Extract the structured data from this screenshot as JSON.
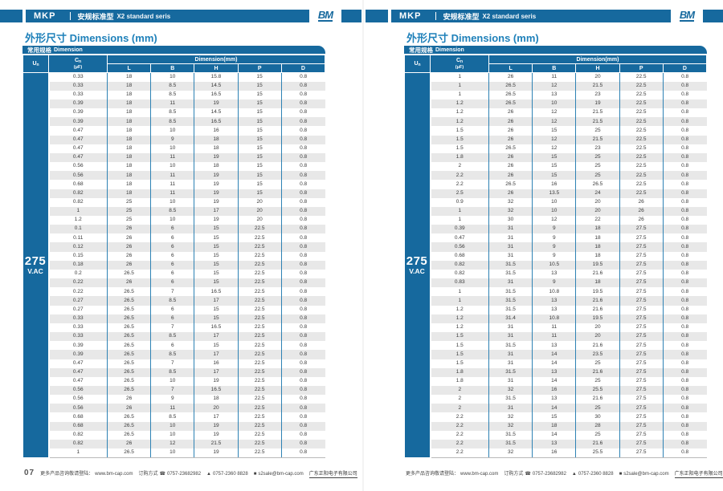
{
  "header": {
    "product": "MKP",
    "series_cn": "安规标准型",
    "series_en": "X2 standard seris",
    "logo": "BM"
  },
  "section_title": {
    "cn": "外形尺寸",
    "en": "Dimensions (mm)"
  },
  "table": {
    "banner_cn": "常用规格",
    "banner_en": "Dimension",
    "un": {
      "base": "U",
      "sub": "n"
    },
    "cn": {
      "base": "C",
      "sub": "n",
      "unit": "(μF)"
    },
    "dim_group": "Dimension(mm)",
    "dim_cols": [
      "L",
      "B",
      "H",
      "P",
      "D"
    ],
    "voltage": "275",
    "voltage_unit": "V.AC"
  },
  "footer": {
    "promo": "更多产品咨询敬请登陆：",
    "url": "www.bm-cap.com",
    "order_label": "订购方式",
    "phone_icon": "☎",
    "phone": "0757-23682982",
    "fax_icon": "▲",
    "fax": "0757-2360 8828",
    "mail_icon": "■",
    "email": "s2sale@bm-cap.com",
    "company": "广东正阳电子有限公司"
  },
  "pages": [
    {
      "page_no": "07",
      "rows": [
        [
          0.33,
          18,
          10,
          15.8,
          15,
          0.8
        ],
        [
          0.33,
          18,
          8.5,
          14.5,
          15,
          0.8
        ],
        [
          0.33,
          18,
          8.5,
          16.5,
          15,
          0.8
        ],
        [
          0.39,
          18,
          11,
          19,
          15,
          0.8
        ],
        [
          0.39,
          18,
          8.5,
          14.5,
          15,
          0.8
        ],
        [
          0.39,
          18,
          8.5,
          16.5,
          15,
          0.8
        ],
        [
          0.47,
          18,
          10,
          16,
          15,
          0.8
        ],
        [
          0.47,
          18,
          9,
          18,
          15,
          0.8
        ],
        [
          0.47,
          18,
          10,
          18,
          15,
          0.8
        ],
        [
          0.47,
          18,
          11,
          19,
          15,
          0.8
        ],
        [
          0.56,
          18,
          10,
          18,
          15,
          0.8
        ],
        [
          0.56,
          18,
          11,
          19,
          15,
          0.8
        ],
        [
          0.68,
          18,
          11,
          19,
          15,
          0.8
        ],
        [
          0.82,
          18,
          11,
          19,
          15,
          0.8
        ],
        [
          0.82,
          25,
          10,
          19,
          20,
          0.8
        ],
        [
          1,
          25,
          8.5,
          17,
          20,
          0.8
        ],
        [
          1.2,
          25,
          10,
          19,
          20,
          0.8
        ],
        [
          0.1,
          26,
          6,
          15,
          22.5,
          0.8
        ],
        [
          0.11,
          26,
          6,
          15,
          22.5,
          0.8
        ],
        [
          0.12,
          26,
          6,
          15,
          22.5,
          0.8
        ],
        [
          0.15,
          26,
          6,
          15,
          22.5,
          0.8
        ],
        [
          0.18,
          26,
          6,
          15,
          22.5,
          0.8
        ],
        [
          0.2,
          26.5,
          6,
          15,
          22.5,
          0.8
        ],
        [
          0.22,
          26,
          6,
          15,
          22.5,
          0.8
        ],
        [
          0.22,
          26.5,
          7,
          16.5,
          22.5,
          0.8
        ],
        [
          0.27,
          26.5,
          8.5,
          17,
          22.5,
          0.8
        ],
        [
          0.27,
          26.5,
          6,
          15,
          22.5,
          0.8
        ],
        [
          0.33,
          26.5,
          6,
          15,
          22.5,
          0.8
        ],
        [
          0.33,
          26.5,
          7,
          16.5,
          22.5,
          0.8
        ],
        [
          0.33,
          26.5,
          8.5,
          17,
          22.5,
          0.8
        ],
        [
          0.39,
          26.5,
          6,
          15,
          22.5,
          0.8
        ],
        [
          0.39,
          26.5,
          8.5,
          17,
          22.5,
          0.8
        ],
        [
          0.47,
          26.5,
          7,
          16,
          22.5,
          0.8
        ],
        [
          0.47,
          26.5,
          8.5,
          17,
          22.5,
          0.8
        ],
        [
          0.47,
          26.5,
          10,
          19,
          22.5,
          0.8
        ],
        [
          0.56,
          26.5,
          7,
          16.5,
          22.5,
          0.8
        ],
        [
          0.56,
          26,
          9,
          18,
          22.5,
          0.8
        ],
        [
          0.56,
          26,
          11,
          20,
          22.5,
          0.8
        ],
        [
          0.68,
          26.5,
          8.5,
          17,
          22.5,
          0.8
        ],
        [
          0.68,
          26.5,
          10,
          19,
          22.5,
          0.8
        ],
        [
          0.82,
          26.5,
          10,
          19,
          22.5,
          0.8
        ],
        [
          0.82,
          26,
          12,
          21.5,
          22.5,
          0.8
        ],
        [
          1,
          26.5,
          10,
          19,
          22.5,
          0.8
        ]
      ]
    },
    {
      "page_no": "08",
      "rows": [
        [
          1,
          26,
          11,
          20,
          22.5,
          0.8
        ],
        [
          1,
          26.5,
          12,
          21.5,
          22.5,
          0.8
        ],
        [
          1,
          26.5,
          13,
          23,
          22.5,
          0.8
        ],
        [
          1.2,
          26.5,
          10,
          19,
          22.5,
          0.8
        ],
        [
          1.2,
          26,
          12,
          21.5,
          22.5,
          0.8
        ],
        [
          1.2,
          26,
          12,
          21.5,
          22.5,
          0.8
        ],
        [
          1.5,
          26,
          15,
          25,
          22.5,
          0.8
        ],
        [
          1.5,
          26,
          12,
          21.5,
          22.5,
          0.8
        ],
        [
          1.5,
          26.5,
          12,
          23,
          22.5,
          0.8
        ],
        [
          1.8,
          26,
          15,
          25,
          22.5,
          0.8
        ],
        [
          2,
          26,
          15,
          25,
          22.5,
          0.8
        ],
        [
          2.2,
          26,
          15,
          25,
          22.5,
          0.8
        ],
        [
          2.2,
          26.5,
          16,
          26.5,
          22.5,
          0.8
        ],
        [
          2.5,
          26,
          13.5,
          24,
          22.5,
          0.8
        ],
        [
          0.9,
          32,
          10,
          20,
          26,
          0.8
        ],
        [
          1,
          32,
          10,
          20,
          26,
          0.8
        ],
        [
          1,
          30,
          12,
          22,
          26,
          0.8
        ],
        [
          0.39,
          31,
          9,
          18,
          27.5,
          0.8
        ],
        [
          0.47,
          31,
          9,
          18,
          27.5,
          0.8
        ],
        [
          0.56,
          31,
          9,
          18,
          27.5,
          0.8
        ],
        [
          0.68,
          31,
          9,
          18,
          27.5,
          0.8
        ],
        [
          0.82,
          31.5,
          10.5,
          19.5,
          27.5,
          0.8
        ],
        [
          0.82,
          31.5,
          13,
          21.6,
          27.5,
          0.8
        ],
        [
          0.83,
          31,
          9,
          18,
          27.5,
          0.8
        ],
        [
          1,
          31.5,
          10.8,
          19.5,
          27.5,
          0.8
        ],
        [
          1,
          31.5,
          13,
          21.6,
          27.5,
          0.8
        ],
        [
          1.2,
          31.5,
          13,
          21.6,
          27.5,
          0.8
        ],
        [
          1.2,
          31.4,
          10.8,
          19.5,
          27.5,
          0.8
        ],
        [
          1.2,
          31,
          11,
          20,
          27.5,
          0.8
        ],
        [
          1.5,
          31,
          11,
          20,
          27.5,
          0.8
        ],
        [
          1.5,
          31.5,
          13,
          21.6,
          27.5,
          0.8
        ],
        [
          1.5,
          31,
          14,
          23.5,
          27.5,
          0.8
        ],
        [
          1.5,
          31,
          14,
          25,
          27.5,
          0.8
        ],
        [
          1.8,
          31.5,
          13,
          21.6,
          27.5,
          0.8
        ],
        [
          1.8,
          31,
          14,
          25,
          27.5,
          0.8
        ],
        [
          2,
          32,
          16,
          25.5,
          27.5,
          0.8
        ],
        [
          2,
          31.5,
          13,
          21.6,
          27.5,
          0.8
        ],
        [
          2,
          31,
          14,
          25,
          27.5,
          0.8
        ],
        [
          2.2,
          32,
          15,
          30,
          27.5,
          0.8
        ],
        [
          2.2,
          32,
          18,
          28,
          27.5,
          0.8
        ],
        [
          2.2,
          31.5,
          14,
          25,
          27.5,
          0.8
        ],
        [
          2.2,
          31.5,
          13,
          21.6,
          27.5,
          0.8
        ],
        [
          2.2,
          32,
          16,
          25.5,
          27.5,
          0.8
        ]
      ]
    }
  ],
  "colors": {
    "primary_blue": "#16699e",
    "row_alt": "#e8e8e8"
  }
}
